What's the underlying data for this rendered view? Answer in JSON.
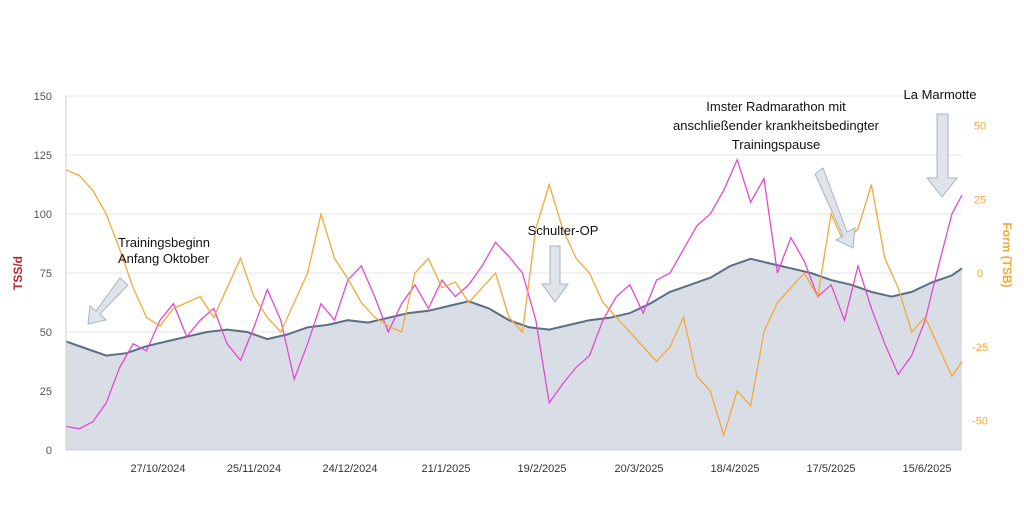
{
  "chart_data": {
    "type": "line",
    "title": "",
    "ylabel_left": "TSS/d",
    "ylabel_right": "Form (TSB)",
    "ylim_left": [
      0,
      150
    ],
    "ylim_right": [
      -60,
      60
    ],
    "yticks_left": [
      "0",
      "25",
      "50",
      "75",
      "100",
      "125",
      "150"
    ],
    "yticks_right": [
      "-50",
      "-25",
      "0",
      "25",
      "50"
    ],
    "x_range": [
      "2024-10-04",
      "2025-06-28"
    ],
    "x_ticks": [
      "27/10/2024",
      "25/11/2024",
      "24/12/2024",
      "21/1/2025",
      "19/2/2025",
      "20/3/2025",
      "18/4/2025",
      "17/5/2025",
      "15/6/2025"
    ],
    "grid": true,
    "colors": {
      "fitness_line": "#5a6e85",
      "fitness_fill": "#d9dee6",
      "load": "#e04ad0",
      "form": "#f2a93b",
      "left_axis_label": "#b3262e",
      "right_axis_label": "#f2a93b",
      "arrow": "#dfe4ea"
    },
    "series": [
      {
        "axis": "left",
        "x": [
          "2024-10-04",
          "2024-10-10",
          "2024-10-16",
          "2024-10-22",
          "2024-10-28",
          "2024-11-03",
          "2024-11-09",
          "2024-11-15",
          "2024-11-21",
          "2024-11-27",
          "2024-12-03",
          "2024-12-09",
          "2024-12-15",
          "2024-12-21",
          "2024-12-27",
          "2025-01-02",
          "2025-01-08",
          "2025-01-14",
          "2025-01-20",
          "2025-01-26",
          "2025-02-01",
          "2025-02-07",
          "2025-02-13",
          "2025-02-19",
          "2025-02-25",
          "2025-03-03",
          "2025-03-09",
          "2025-03-15",
          "2025-03-21",
          "2025-03-27",
          "2025-04-02",
          "2025-04-08",
          "2025-04-14",
          "2025-04-20",
          "2025-04-26",
          "2025-05-02",
          "2025-05-08",
          "2025-05-14",
          "2025-05-20",
          "2025-05-26",
          "2025-06-01",
          "2025-06-07",
          "2025-06-13",
          "2025-06-19",
          "2025-06-25",
          "2025-06-28"
        ],
        "values": [
          46,
          43,
          40,
          41,
          44,
          46,
          48,
          50,
          51,
          50,
          47,
          49,
          52,
          53,
          55,
          54,
          56,
          58,
          59,
          61,
          63,
          60,
          55,
          52,
          51,
          53,
          55,
          56,
          58,
          62,
          67,
          70,
          73,
          78,
          81,
          79,
          77,
          75,
          72,
          70,
          67,
          65,
          67,
          71,
          74,
          77
        ]
      },
      {
        "axis": "left",
        "x": [
          "2024-10-04",
          "2024-10-08",
          "2024-10-12",
          "2024-10-16",
          "2024-10-20",
          "2024-10-24",
          "2024-10-28",
          "2024-11-01",
          "2024-11-05",
          "2024-11-09",
          "2024-11-13",
          "2024-11-17",
          "2024-11-21",
          "2024-11-25",
          "2024-11-29",
          "2024-12-03",
          "2024-12-07",
          "2024-12-11",
          "2024-12-15",
          "2024-12-19",
          "2024-12-23",
          "2024-12-27",
          "2024-12-31",
          "2025-01-04",
          "2025-01-08",
          "2025-01-12",
          "2025-01-16",
          "2025-01-20",
          "2025-01-24",
          "2025-01-28",
          "2025-02-01",
          "2025-02-05",
          "2025-02-09",
          "2025-02-13",
          "2025-02-17",
          "2025-02-21",
          "2025-02-25",
          "2025-03-01",
          "2025-03-05",
          "2025-03-09",
          "2025-03-13",
          "2025-03-17",
          "2025-03-21",
          "2025-03-25",
          "2025-03-29",
          "2025-04-02",
          "2025-04-06",
          "2025-04-10",
          "2025-04-14",
          "2025-04-18",
          "2025-04-22",
          "2025-04-26",
          "2025-04-30",
          "2025-05-04",
          "2025-05-08",
          "2025-05-12",
          "2025-05-16",
          "2025-05-20",
          "2025-05-24",
          "2025-05-28",
          "2025-06-01",
          "2025-06-05",
          "2025-06-09",
          "2025-06-13",
          "2025-06-17",
          "2025-06-21",
          "2025-06-25",
          "2025-06-28"
        ],
        "values": [
          10,
          9,
          12,
          20,
          35,
          45,
          42,
          55,
          62,
          48,
          55,
          60,
          45,
          38,
          52,
          68,
          55,
          30,
          45,
          62,
          55,
          72,
          78,
          65,
          50,
          62,
          70,
          60,
          72,
          65,
          70,
          78,
          88,
          82,
          75,
          55,
          20,
          28,
          35,
          40,
          55,
          65,
          70,
          58,
          72,
          75,
          85,
          95,
          100,
          110,
          123,
          105,
          115,
          75,
          90,
          80,
          65,
          70,
          55,
          78,
          60,
          45,
          32,
          40,
          55,
          78,
          100,
          108
        ]
      },
      {
        "axis": "right",
        "x": [
          "2024-10-04",
          "2024-10-08",
          "2024-10-12",
          "2024-10-16",
          "2024-10-20",
          "2024-10-24",
          "2024-10-28",
          "2024-11-01",
          "2024-11-05",
          "2024-11-09",
          "2024-11-13",
          "2024-11-17",
          "2024-11-21",
          "2024-11-25",
          "2024-11-29",
          "2024-12-03",
          "2024-12-07",
          "2024-12-11",
          "2024-12-15",
          "2024-12-19",
          "2024-12-23",
          "2024-12-27",
          "2024-12-31",
          "2025-01-04",
          "2025-01-08",
          "2025-01-12",
          "2025-01-16",
          "2025-01-20",
          "2025-01-24",
          "2025-01-28",
          "2025-02-01",
          "2025-02-05",
          "2025-02-09",
          "2025-02-13",
          "2025-02-17",
          "2025-02-21",
          "2025-02-25",
          "2025-03-01",
          "2025-03-05",
          "2025-03-09",
          "2025-03-13",
          "2025-03-17",
          "2025-03-21",
          "2025-03-25",
          "2025-03-29",
          "2025-04-02",
          "2025-04-06",
          "2025-04-10",
          "2025-04-14",
          "2025-04-18",
          "2025-04-22",
          "2025-04-26",
          "2025-04-30",
          "2025-05-04",
          "2025-05-08",
          "2025-05-12",
          "2025-05-16",
          "2025-05-20",
          "2025-05-24",
          "2025-05-28",
          "2025-06-01",
          "2025-06-05",
          "2025-06-09",
          "2025-06-13",
          "2025-06-17",
          "2025-06-21",
          "2025-06-25",
          "2025-06-28"
        ],
        "values": [
          35,
          33,
          28,
          20,
          8,
          -5,
          -15,
          -18,
          -12,
          -10,
          -8,
          -15,
          -5,
          5,
          -8,
          -15,
          -20,
          -10,
          0,
          20,
          5,
          -2,
          -10,
          -15,
          -18,
          -20,
          0,
          5,
          -5,
          -3,
          -10,
          -5,
          0,
          -15,
          -20,
          15,
          30,
          15,
          5,
          0,
          -10,
          -15,
          -20,
          -25,
          -30,
          -25,
          -15,
          -35,
          -40,
          -55,
          -40,
          -45,
          -20,
          -10,
          -5,
          0,
          -8,
          20,
          10,
          15,
          30,
          5,
          -5,
          -20,
          -15,
          -25,
          -35,
          -30
        ]
      }
    ],
    "annotations": [
      {
        "lines": [
          "Trainingsbeginn",
          "Anfang Oktober"
        ]
      },
      {
        "lines": [
          "Schulter-OP"
        ]
      },
      {
        "lines": [
          "Imster Radmarathon mit",
          "anschließender krankheitsbedingter",
          "Trainingspause"
        ]
      },
      {
        "lines": [
          "La Marmotte"
        ]
      }
    ]
  }
}
